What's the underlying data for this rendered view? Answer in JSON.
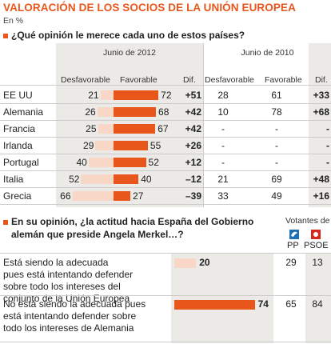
{
  "title": "VALORACIÓN DE LOS SOCIOS DE LA UNIÓN EUROPEA",
  "unit": "En %",
  "q1": "¿Qué opinión le merece cada uno de estos países?",
  "period_2012": "Junio de 2012",
  "period_2010": "Junio de 2010",
  "headers": {
    "desf": "Desfavorable",
    "fav": "Favorable",
    "dif": "Dif."
  },
  "colors": {
    "accent": "#e8561b",
    "light": "#f9d7c6",
    "shade": "#eceae7"
  },
  "chart_data": [
    {
      "type": "bar",
      "title": "VALORACIÓN DE LOS SOCIOS DE LA UNIÓN EUROPEA",
      "categories": [
        "EE UU",
        "Alemania",
        "Francia",
        "Irlanda",
        "Portugal",
        "Italia",
        "Grecia"
      ],
      "series": [
        {
          "name": "Desfavorable",
          "period": "Junio de 2012",
          "values": [
            21,
            26,
            25,
            29,
            40,
            52,
            66
          ]
        },
        {
          "name": "Favorable",
          "period": "Junio de 2012",
          "values": [
            72,
            68,
            67,
            55,
            52,
            40,
            27
          ]
        },
        {
          "name": "Dif.",
          "period": "Junio de 2012",
          "values": [
            "+51",
            "+42",
            "+42",
            "+26",
            "+12",
            "–12",
            "–39"
          ]
        },
        {
          "name": "Desfavorable",
          "period": "Junio de 2010",
          "values": [
            "28",
            "10",
            "-",
            "-",
            "-",
            "21",
            "33"
          ]
        },
        {
          "name": "Favorable",
          "period": "Junio de 2010",
          "values": [
            "61",
            "78",
            "-",
            "-",
            "-",
            "69",
            "49"
          ]
        },
        {
          "name": "Dif.",
          "period": "Junio de 2010",
          "values": [
            "+33",
            "+68",
            "-",
            "-",
            "-",
            "+48",
            "+16"
          ]
        }
      ]
    },
    {
      "type": "bar",
      "title": "En su opinión, ¿la actitud hacia España del Gobierno alemán que preside Angela Merkel…?",
      "categories": [
        "Está siendo la adecuada pues está intentando defender sobre todo los intereses del conjunto de la Unión Europea",
        "No está siendo la adecuada pues está intentando defender sobre todo los intereses de Alemania"
      ],
      "series": [
        {
          "name": "Total",
          "values": [
            20,
            74
          ]
        },
        {
          "name": "PP",
          "values": [
            29,
            65
          ]
        },
        {
          "name": "PSOE",
          "values": [
            13,
            84
          ]
        }
      ]
    }
  ],
  "q2_line1": "En su opinión, ¿la actitud hacia España del Gobierno",
  "q2_line2": "alemán que preside Angela Merkel…?",
  "votantes": "Votantes de",
  "pp_label": "PP",
  "psoe_label": "PSOE",
  "answers": [
    {
      "lines": [
        "Está siendo la adecuada",
        "pues está intentando defender",
        "sobre todo los intereses del",
        "conjunto de la Unión Europea"
      ]
    },
    {
      "lines": [
        "No está siendo la adecuada pues",
        "está intentando defender sobre",
        "todo los intereses de Alemania"
      ]
    }
  ]
}
